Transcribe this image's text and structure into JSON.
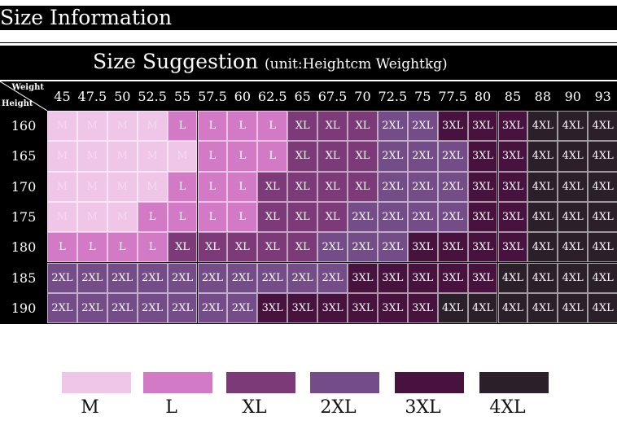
{
  "header": {
    "title": "Size Information"
  },
  "suggestion": {
    "title": "Size Suggestion",
    "unit": "(unit:Heightcm Weightkg)"
  },
  "table": {
    "corner_weight": "Weight",
    "corner_height": "Height",
    "weights": [
      "45",
      "47.5",
      "50",
      "52.5",
      "55",
      "57.5",
      "60",
      "62.5",
      "65",
      "67.5",
      "70",
      "72.5",
      "75",
      "77.5",
      "80",
      "85",
      "88",
      "90",
      "93"
    ],
    "rows": [
      {
        "height": "160",
        "sizes": [
          "M",
          "M",
          "M",
          "M",
          "L",
          "L",
          "L",
          "L",
          "XL",
          "XL",
          "XL",
          "2XL",
          "2XL",
          "3XL",
          "3XL",
          "3XL",
          "4XL",
          "4XL",
          "4XL"
        ]
      },
      {
        "height": "165",
        "sizes": [
          "M",
          "M",
          "M",
          "M",
          "M",
          "L",
          "L",
          "L",
          "XL",
          "XL",
          "XL",
          "2XL",
          "2XL",
          "2XL",
          "3XL",
          "3XL",
          "4XL",
          "4XL",
          "4XL"
        ]
      },
      {
        "height": "170",
        "sizes": [
          "M",
          "M",
          "M",
          "M",
          "L",
          "L",
          "L",
          "XL",
          "XL",
          "XL",
          "XL",
          "2XL",
          "2XL",
          "2XL",
          "3XL",
          "3XL",
          "4XL",
          "4XL",
          "4XL"
        ]
      },
      {
        "height": "175",
        "sizes": [
          "M",
          "M",
          "M",
          "L",
          "L",
          "L",
          "L",
          "XL",
          "XL",
          "XL",
          "2XL",
          "2XL",
          "2XL",
          "2XL",
          "3XL",
          "3XL",
          "4XL",
          "4XL",
          "4XL"
        ]
      },
      {
        "height": "180",
        "sizes": [
          "L",
          "L",
          "L",
          "L",
          "XL",
          "XL",
          "XL",
          "XL",
          "XL",
          "2XL",
          "2XL",
          "2XL",
          "3XL",
          "3XL",
          "3XL",
          "3XL",
          "4XL",
          "4XL",
          "4XL"
        ]
      },
      {
        "height": "185",
        "sizes": [
          "2XL",
          "2XL",
          "2XL",
          "2XL",
          "2XL",
          "2XL",
          "2XL",
          "2XL",
          "2XL",
          "2XL",
          "3XL",
          "3XL",
          "3XL",
          "3XL",
          "3XL",
          "4XL",
          "4XL",
          "4XL",
          "4XL"
        ]
      },
      {
        "height": "190",
        "sizes": [
          "2XL",
          "2XL",
          "2XL",
          "2XL",
          "2XL",
          "2XL",
          "2XL",
          "3XL",
          "3XL",
          "3XL",
          "3XL",
          "3XL",
          "3XL",
          "4XL",
          "4XL",
          "4XL",
          "4XL",
          "4XL",
          "4XL"
        ]
      }
    ]
  },
  "colors": {
    "M": "#f0c6e8",
    "L": "#d27ac6",
    "XL": "#7d3a78",
    "2XL": "#744d88",
    "3XL": "#48123f",
    "4XL": "#2b1f2a"
  },
  "legend": [
    {
      "size": "M",
      "label": "M"
    },
    {
      "size": "L",
      "label": "L"
    },
    {
      "size": "XL",
      "label": "XL"
    },
    {
      "size": "2XL",
      "label": "2XL"
    },
    {
      "size": "3XL",
      "label": "3XL"
    },
    {
      "size": "4XL",
      "label": "4XL"
    }
  ]
}
